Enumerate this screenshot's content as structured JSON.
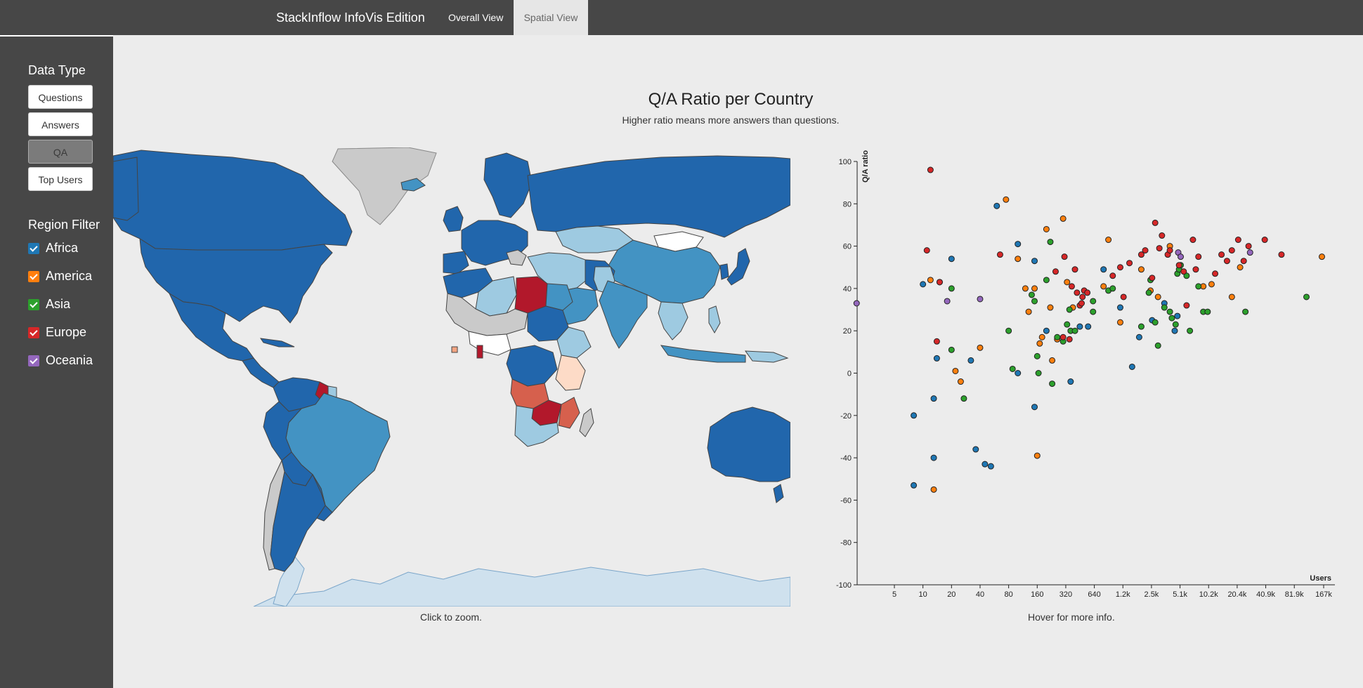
{
  "app": {
    "brand": "StackInflow InfoVis Edition"
  },
  "nav": {
    "tabs": [
      {
        "label": "Overall View"
      },
      {
        "label": "Spatial View"
      }
    ],
    "active": "Spatial View"
  },
  "sidebar": {
    "data_type_title": "Data Type",
    "data_types": [
      {
        "label": "Questions"
      },
      {
        "label": "Answers"
      },
      {
        "label": "QA"
      },
      {
        "label": "Top Users"
      }
    ],
    "active_data_type": "QA",
    "region_filter_title": "Region Filter",
    "regions": [
      {
        "label": "Africa",
        "color": "#1f77b4",
        "checked": true
      },
      {
        "label": "America",
        "color": "#ff7f0e",
        "checked": true
      },
      {
        "label": "Asia",
        "color": "#2ca02c",
        "checked": true
      },
      {
        "label": "Europe",
        "color": "#d62728",
        "checked": true
      },
      {
        "label": "Oceania",
        "color": "#9467bd",
        "checked": true
      }
    ]
  },
  "main": {
    "title": "Q/A Ratio per Country",
    "subtitle": "Higher ratio means more answers than questions.",
    "map_note": "Click to zoom.",
    "scatter_note": "Hover for more info."
  },
  "chart_data": {
    "type": "scatter",
    "xlabel": "Users",
    "ylabel": "Q/A ratio",
    "x_scale": "log2",
    "x_ticks": [
      "5",
      "10",
      "20",
      "40",
      "80",
      "160",
      "320",
      "640",
      "1.2k",
      "2.5k",
      "5.1k",
      "10.2k",
      "20.4k",
      "40.9k",
      "81.9k",
      "167k"
    ],
    "x_tick_values": [
      5,
      10,
      20,
      40,
      80,
      160,
      320,
      640,
      1280,
      2560,
      5120,
      10240,
      20480,
      40960,
      81920,
      167000
    ],
    "ylim": [
      -100,
      100
    ],
    "y_ticks": [
      -100,
      -80,
      -60,
      -40,
      -20,
      0,
      20,
      40,
      60,
      80,
      100
    ],
    "region_colors": {
      "Africa": "#1f77b4",
      "America": "#ff7f0e",
      "Asia": "#2ca02c",
      "Europe": "#d62728",
      "Oceania": "#9467bd"
    },
    "series": [
      {
        "name": "Africa",
        "points": [
          [
            10,
            42
          ],
          [
            60,
            79
          ],
          [
            100,
            61
          ],
          [
            13,
            -12
          ],
          [
            13,
            -40
          ],
          [
            8,
            -53
          ],
          [
            8,
            -20
          ],
          [
            14,
            7
          ],
          [
            20,
            54
          ],
          [
            32,
            6
          ],
          [
            36,
            -36
          ],
          [
            45,
            -43
          ],
          [
            52,
            -44
          ],
          [
            100,
            0
          ],
          [
            150,
            53
          ],
          [
            150,
            -16
          ],
          [
            200,
            20
          ],
          [
            450,
            22
          ],
          [
            1600,
            3
          ],
          [
            1900,
            17
          ],
          [
            4500,
            20
          ],
          [
            360,
            -4
          ],
          [
            550,
            22
          ],
          [
            800,
            49
          ],
          [
            1200,
            31
          ],
          [
            3500,
            33
          ],
          [
            4800,
            27
          ],
          [
            2600,
            25
          ]
        ]
      },
      {
        "name": "America",
        "points": [
          [
            12,
            44
          ],
          [
            13,
            -55
          ],
          [
            15,
            43
          ],
          [
            22,
            1
          ],
          [
            25,
            -4
          ],
          [
            40,
            12
          ],
          [
            75,
            82
          ],
          [
            100,
            54
          ],
          [
            120,
            40
          ],
          [
            130,
            29
          ],
          [
            150,
            40
          ],
          [
            160,
            -39
          ],
          [
            170,
            14
          ],
          [
            180,
            17
          ],
          [
            200,
            68
          ],
          [
            220,
            31
          ],
          [
            230,
            6
          ],
          [
            260,
            16
          ],
          [
            300,
            73
          ],
          [
            330,
            43
          ],
          [
            380,
            31
          ],
          [
            800,
            41
          ],
          [
            900,
            63
          ],
          [
            1200,
            24
          ],
          [
            2000,
            49
          ],
          [
            2500,
            39
          ],
          [
            3000,
            36
          ],
          [
            4000,
            60
          ],
          [
            9000,
            41
          ],
          [
            11000,
            42
          ],
          [
            18000,
            36
          ],
          [
            22000,
            50
          ],
          [
            160000,
            55
          ]
        ]
      },
      {
        "name": "Asia",
        "points": [
          [
            20,
            11
          ],
          [
            20,
            40
          ],
          [
            27,
            -12
          ],
          [
            80,
            20
          ],
          [
            88,
            2
          ],
          [
            140,
            37
          ],
          [
            150,
            34
          ],
          [
            160,
            8
          ],
          [
            165,
            0
          ],
          [
            200,
            44
          ],
          [
            220,
            62
          ],
          [
            230,
            -5
          ],
          [
            260,
            17
          ],
          [
            300,
            15
          ],
          [
            330,
            23
          ],
          [
            350,
            30
          ],
          [
            360,
            20
          ],
          [
            400,
            20
          ],
          [
            620,
            34
          ],
          [
            620,
            29
          ],
          [
            900,
            39
          ],
          [
            1000,
            40
          ],
          [
            2000,
            22
          ],
          [
            2400,
            38
          ],
          [
            2500,
            44
          ],
          [
            2800,
            24
          ],
          [
            3000,
            13
          ],
          [
            3500,
            31
          ],
          [
            4000,
            29
          ],
          [
            4200,
            26
          ],
          [
            4600,
            23
          ],
          [
            4800,
            47
          ],
          [
            5000,
            49
          ],
          [
            5200,
            51
          ],
          [
            6000,
            46
          ],
          [
            8000,
            41
          ],
          [
            9000,
            29
          ],
          [
            10000,
            29
          ],
          [
            6500,
            20
          ],
          [
            25000,
            29
          ],
          [
            110000,
            36
          ]
        ]
      },
      {
        "name": "Europe",
        "points": [
          [
            11,
            58
          ],
          [
            12,
            96
          ],
          [
            14,
            15
          ],
          [
            15,
            43
          ],
          [
            65,
            56
          ],
          [
            250,
            48
          ],
          [
            300,
            17
          ],
          [
            310,
            55
          ],
          [
            350,
            16
          ],
          [
            370,
            41
          ],
          [
            400,
            49
          ],
          [
            420,
            38
          ],
          [
            450,
            32
          ],
          [
            470,
            33
          ],
          [
            480,
            36
          ],
          [
            500,
            39
          ],
          [
            540,
            38
          ],
          [
            1000,
            46
          ],
          [
            1200,
            50
          ],
          [
            1300,
            36
          ],
          [
            1500,
            52
          ],
          [
            2000,
            56
          ],
          [
            2200,
            58
          ],
          [
            2600,
            45
          ],
          [
            2800,
            71
          ],
          [
            3100,
            59
          ],
          [
            3300,
            65
          ],
          [
            3800,
            56
          ],
          [
            4000,
            58
          ],
          [
            5000,
            51
          ],
          [
            5600,
            48
          ],
          [
            6000,
            32
          ],
          [
            7000,
            63
          ],
          [
            7500,
            49
          ],
          [
            8000,
            55
          ],
          [
            12000,
            47
          ],
          [
            14000,
            56
          ],
          [
            16000,
            53
          ],
          [
            18000,
            58
          ],
          [
            21000,
            63
          ],
          [
            24000,
            53
          ],
          [
            27000,
            60
          ],
          [
            40000,
            63
          ],
          [
            60000,
            56
          ]
        ]
      },
      {
        "name": "Oceania",
        "points": [
          [
            2,
            33
          ],
          [
            18,
            34
          ],
          [
            40,
            35
          ],
          [
            4900,
            57
          ],
          [
            5200,
            55
          ],
          [
            28000,
            57
          ]
        ]
      }
    ]
  }
}
